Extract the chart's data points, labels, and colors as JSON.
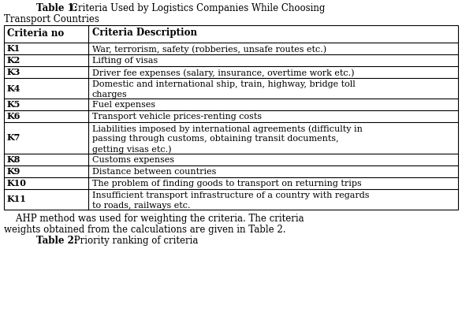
{
  "title_bold": "Table 1:",
  "title_rest": "  Criteria Used by Logistics Companies While Choosing\nTransport Countries",
  "col_headers": [
    "Criteria no",
    "Criteria Description"
  ],
  "rows": [
    [
      "K1",
      "War, terrorism, safety (robberies, unsafe routes etc.)"
    ],
    [
      "K2",
      "Lifting of visas"
    ],
    [
      "K3",
      "Driver fee expenses (salary, insurance, overtime work etc.)"
    ],
    [
      "K4",
      "Domestic and international ship, train, highway, bridge toll\ncharges"
    ],
    [
      "K5",
      "Fuel expenses"
    ],
    [
      "K6",
      "Transport vehicle prices-renting costs"
    ],
    [
      "K7",
      "Liabilities imposed by international agreements (difficulty in\npassing through customs, obtaining transit documents,\ngetting visas etc.)"
    ],
    [
      "K8",
      "Customs expenses"
    ],
    [
      "K9",
      "Distance between countries"
    ],
    [
      "K10",
      "The problem of finding goods to transport on returning trips"
    ],
    [
      "K11",
      "Insufficient transport infrastructure of a country with regards\nto roads, railways etc."
    ]
  ],
  "footer_line1": "    AHP method was used for weighting the criteria. The criteria",
  "footer_line2": "weights obtained from the calculations are given in Table 2.",
  "footer2_bold": "Table 2:",
  "footer2_rest": " Priority ranking of criteria",
  "bg_color": "#ffffff",
  "font_size": 8.0,
  "title_font_size": 8.5,
  "footer_font_size": 8.5
}
